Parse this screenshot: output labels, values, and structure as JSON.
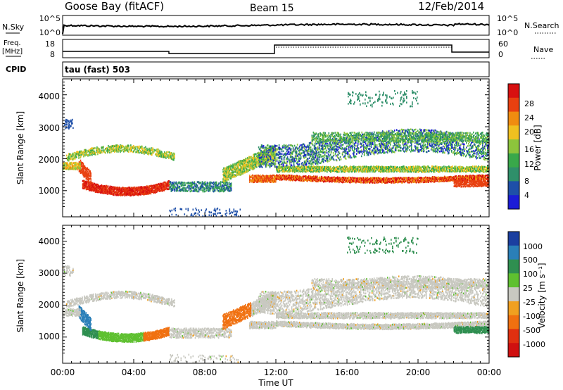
{
  "header": {
    "station": "Goose Bay (fitACF)",
    "beam": "Beam 15",
    "date": "12/Feb/2014"
  },
  "noise_panel": {
    "left_label": "N.Sky",
    "right_label": "N.Search",
    "tick_top": "10^5",
    "tick_bottom": "10^0",
    "right_tick_top": "10^5",
    "right_tick_bottom": "10^0"
  },
  "freq_panel": {
    "left_label_line1": "Freq.",
    "left_label_line2": "[MHz]",
    "right_label": "Nave",
    "left_ticks": [
      "18",
      "8"
    ],
    "right_ticks": [
      "60",
      "0"
    ]
  },
  "cpid": {
    "label": "CPID",
    "value": "tau (fast) 503"
  },
  "colors": {
    "power": [
      "#1b1bd6",
      "#1e4fa8",
      "#2f8f6a",
      "#39a84a",
      "#8dc43c",
      "#f0c020",
      "#f08c10",
      "#e84010",
      "#d81010"
    ],
    "velocity": [
      "#1b3fa0",
      "#2a7fb8",
      "#2f8f50",
      "#5fc030",
      "#c8c8c0",
      "#f0a020",
      "#f07010",
      "#e03010",
      "#d01010"
    ]
  },
  "chart_data": [
    {
      "type": "heatmap",
      "name": "power",
      "xlabel": "",
      "ylabel": "Slant Range [km]",
      "x_ticks": [
        "00:00",
        "04:00",
        "08:00",
        "12:00",
        "16:00",
        "20:00",
        "00:00"
      ],
      "y_ticks": [
        "1000",
        "2000",
        "3000",
        "4000"
      ],
      "ylim": [
        180,
        4500
      ],
      "xlim_hours": [
        0,
        24
      ],
      "colorbar_label": "Power [dB]",
      "colorbar_ticks": [
        "28",
        "24",
        "20",
        "16",
        "12",
        "8",
        "4"
      ]
    },
    {
      "type": "heatmap",
      "name": "velocity",
      "xlabel": "Time UT",
      "ylabel": "Slant Range [km]",
      "x_ticks": [
        "00:00",
        "04:00",
        "08:00",
        "12:00",
        "16:00",
        "20:00",
        "00:00"
      ],
      "y_ticks": [
        "1000",
        "2000",
        "3000",
        "4000"
      ],
      "ylim": [
        180,
        4500
      ],
      "xlim_hours": [
        0,
        24
      ],
      "colorbar_label": "Velocity [m s⁻¹]",
      "colorbar_ticks": [
        "1000",
        "500",
        "100",
        "25",
        "-25",
        "-100",
        "-500",
        "-1000"
      ]
    }
  ]
}
